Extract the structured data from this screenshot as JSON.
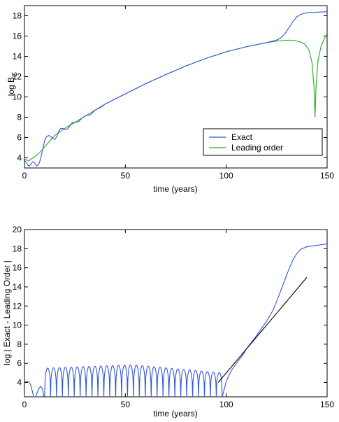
{
  "chart_data": [
    {
      "type": "line",
      "xlabel": "time (years)",
      "ylabel": "log B",
      "ylabel_subscript": "C",
      "xlim": [
        0,
        150
      ],
      "ylim": [
        3,
        19
      ],
      "xticks": [
        0,
        50,
        100,
        150
      ],
      "yticks": [
        4,
        6,
        8,
        10,
        12,
        14,
        16,
        18
      ],
      "legend": {
        "position": "lower-right-inner"
      },
      "series": [
        {
          "name": "Exact",
          "color": "#3355dd",
          "points": [
            [
              0,
              3.8
            ],
            [
              1,
              3.5
            ],
            [
              2,
              3.2
            ],
            [
              3,
              3.3
            ],
            [
              4,
              3.6
            ],
            [
              5,
              3.5
            ],
            [
              6,
              3.2
            ],
            [
              7,
              3.3
            ],
            [
              8,
              3.9
            ],
            [
              9,
              4.8
            ],
            [
              10,
              5.7
            ],
            [
              11,
              6.1
            ],
            [
              12,
              6.2
            ],
            [
              13,
              6.1
            ],
            [
              14,
              5.9
            ],
            [
              15,
              5.8
            ],
            [
              16,
              6.1
            ],
            [
              17,
              6.6
            ],
            [
              18,
              6.9
            ],
            [
              19,
              6.9
            ],
            [
              20,
              6.8
            ],
            [
              21,
              6.8
            ],
            [
              22,
              7.0
            ],
            [
              23,
              7.3
            ],
            [
              24,
              7.5
            ],
            [
              25,
              7.5
            ],
            [
              26,
              7.5
            ],
            [
              27,
              7.6
            ],
            [
              28,
              7.8
            ],
            [
              29,
              8.0
            ],
            [
              30,
              8.1
            ],
            [
              31,
              8.2
            ],
            [
              32,
              8.2
            ],
            [
              33,
              8.3
            ],
            [
              34,
              8.5
            ],
            [
              35,
              8.7
            ],
            [
              36,
              8.8
            ],
            [
              37,
              8.9
            ],
            [
              38,
              9.0
            ],
            [
              40,
              9.3
            ],
            [
              45,
              9.8
            ],
            [
              50,
              10.3
            ],
            [
              60,
              11.3
            ],
            [
              70,
              12.2
            ],
            [
              80,
              13.05
            ],
            [
              90,
              13.8
            ],
            [
              100,
              14.45
            ],
            [
              110,
              14.95
            ],
            [
              120,
              15.35
            ],
            [
              125,
              15.6
            ],
            [
              127,
              15.8
            ],
            [
              129,
              16.2
            ],
            [
              131,
              16.8
            ],
            [
              133,
              17.4
            ],
            [
              135,
              17.9
            ],
            [
              137,
              18.15
            ],
            [
              140,
              18.3
            ],
            [
              145,
              18.35
            ],
            [
              150,
              18.4
            ]
          ]
        },
        {
          "name": "Leading order",
          "color": "#22aa22",
          "points": [
            [
              0,
              3.9
            ],
            [
              2,
              3.7
            ],
            [
              5,
              4.1
            ],
            [
              8,
              4.6
            ],
            [
              10,
              5.1
            ],
            [
              15,
              6.2
            ],
            [
              20,
              6.9
            ],
            [
              25,
              7.5
            ],
            [
              30,
              8.1
            ],
            [
              35,
              8.7
            ],
            [
              40,
              9.3
            ],
            [
              45,
              9.8
            ],
            [
              50,
              10.3
            ],
            [
              60,
              11.3
            ],
            [
              70,
              12.2
            ],
            [
              80,
              13.05
            ],
            [
              90,
              13.8
            ],
            [
              100,
              14.45
            ],
            [
              110,
              14.95
            ],
            [
              120,
              15.35
            ],
            [
              125,
              15.5
            ],
            [
              128,
              15.55
            ],
            [
              131,
              15.6
            ],
            [
              134,
              15.55
            ],
            [
              137,
              15.4
            ],
            [
              139,
              15.2
            ],
            [
              141,
              14.6
            ],
            [
              142.5,
              13.4
            ],
            [
              143.5,
              11.0
            ],
            [
              144,
              8.0
            ],
            [
              144.5,
              11.0
            ],
            [
              145.5,
              13.6
            ],
            [
              147,
              15.0
            ],
            [
              149,
              15.9
            ],
            [
              150,
              16.2
            ]
          ]
        }
      ]
    },
    {
      "type": "line",
      "xlabel": "time (years)",
      "ylabel": "log | Exact - Leading Order |",
      "xlim": [
        0,
        150
      ],
      "ylim": [
        2.5,
        20
      ],
      "xticks": [
        0,
        50,
        100,
        150
      ],
      "yticks": [
        4,
        6,
        8,
        10,
        12,
        14,
        16,
        18,
        20
      ],
      "oscillation": {
        "t_start": 10,
        "t_end": 98,
        "period": 2.93,
        "peak_start": 5.5,
        "peak_mid": 5.85,
        "peak_end": 5.0
      },
      "series": [
        {
          "name": "",
          "color": "#3355dd",
          "head": [
            [
              0,
              4.1
            ],
            [
              2,
              4.1
            ],
            [
              3,
              3.8
            ],
            [
              4,
              3.0
            ],
            [
              4.5,
              2.5
            ],
            [
              5.5,
              2.5
            ],
            [
              7,
              3.3
            ],
            [
              8,
              3.6
            ],
            [
              9,
              3.3
            ],
            [
              9.7,
              2.5
            ]
          ],
          "tail": [
            [
              98,
              2.5
            ],
            [
              99,
              3.3
            ],
            [
              100,
              4.1
            ],
            [
              101,
              4.6
            ],
            [
              103,
              5.4
            ],
            [
              105,
              6.0
            ],
            [
              108,
              6.8
            ],
            [
              110,
              7.5
            ],
            [
              115,
              8.9
            ],
            [
              120,
              10.4
            ],
            [
              123,
              11.5
            ],
            [
              125,
              12.5
            ],
            [
              127,
              13.6
            ],
            [
              129,
              14.7
            ],
            [
              131,
              15.8
            ],
            [
              133,
              16.8
            ],
            [
              135,
              17.5
            ],
            [
              137,
              17.95
            ],
            [
              140,
              18.2
            ],
            [
              145,
              18.35
            ],
            [
              150,
              18.5
            ]
          ]
        },
        {
          "name": "",
          "color": "#000000",
          "points": [
            [
              96,
              4.0
            ],
            [
              140,
              15.0
            ]
          ]
        }
      ]
    }
  ]
}
